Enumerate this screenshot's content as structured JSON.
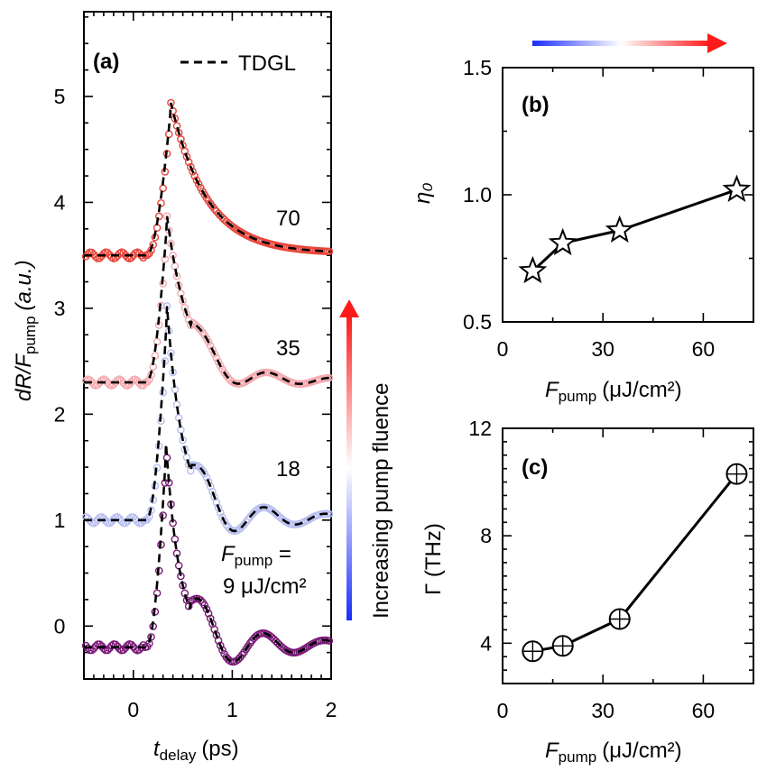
{
  "chart_data": [
    {
      "panel": "(a)",
      "type": "line",
      "xlabel_main": "t",
      "xlabel_sub": "delay",
      "xlabel_unit": "(ps)",
      "ylabel_pre": "dR/F",
      "ylabel_sub": "pump",
      "ylabel_unit": "(a.u.)",
      "xlim": [
        -0.5,
        2
      ],
      "ylim": [
        -0.5,
        5.8
      ],
      "xticks": [
        "0",
        "1",
        "2"
      ],
      "yticks": [
        "0",
        "1",
        "2",
        "3",
        "4",
        "5"
      ],
      "legend": "TDGL",
      "series": [
        {
          "name": "70",
          "color": "#e8463c",
          "offset": 3.5,
          "peak": 1.42,
          "t0": 0.38,
          "rise": 0.12,
          "decay": 0.36,
          "osc_amp": 0.0,
          "osc_period": 0.9
        },
        {
          "name": "35",
          "color": "#f4aab0",
          "offset": 2.3,
          "peak": 1.55,
          "t0": 0.34,
          "rise": 0.1,
          "decay": 0.22,
          "osc_amp": 0.18,
          "osc_period": 0.65
        },
        {
          "name": "18",
          "color": "#b8bff0",
          "offset": 1.0,
          "peak": 2.0,
          "t0": 0.34,
          "rise": 0.1,
          "decay": 0.16,
          "osc_amp": 0.28,
          "osc_period": 0.62
        },
        {
          "name": "9 μJ/cm²",
          "color": "#7a1a78",
          "offset": -0.2,
          "peak": 1.9,
          "t0": 0.33,
          "rise": 0.1,
          "decay": 0.14,
          "osc_amp": 0.32,
          "osc_period": 0.62
        }
      ],
      "labels": {
        "s70": "70",
        "s35": "35",
        "s18": "18",
        "fpump_main": "F",
        "fpump_sub": "pump",
        "fpump_eq": " =",
        "fpump_val": "9 μJ/cm²"
      }
    },
    {
      "panel": "(b)",
      "type": "line",
      "xlabel_main": "F",
      "xlabel_sub": "pump",
      "xlabel_unit": "(μJ/cm²)",
      "ylabel": "η₀",
      "xlim": [
        0,
        75
      ],
      "ylim": [
        0.5,
        1.5
      ],
      "xticks": [
        0,
        30,
        60
      ],
      "yticks": [
        "0.5",
        "1.0",
        "1.5"
      ],
      "x": [
        9,
        18,
        35,
        70
      ],
      "y": [
        0.7,
        0.81,
        0.86,
        1.02
      ]
    },
    {
      "panel": "(c)",
      "type": "line",
      "xlabel_main": "F",
      "xlabel_sub": "pump",
      "xlabel_unit": "(μJ/cm²)",
      "ylabel": "Γ (THz)",
      "xlim": [
        0,
        75
      ],
      "ylim": [
        2.5,
        12
      ],
      "xticks": [
        0,
        30,
        60
      ],
      "yticks": [
        4,
        8,
        12
      ],
      "x": [
        9,
        18,
        35,
        70
      ],
      "y": [
        3.7,
        3.9,
        4.9,
        10.3
      ]
    }
  ],
  "fluence_arrow_label": "Increasing pump fluence",
  "colors": {
    "blue": "#1a2cff",
    "red": "#ff1a1a",
    "line": "#000000"
  }
}
